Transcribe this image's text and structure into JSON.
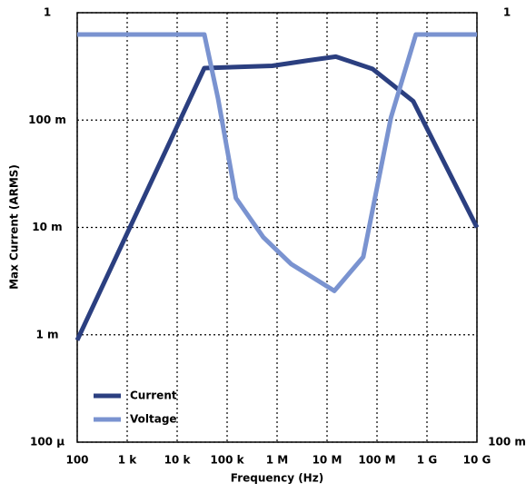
{
  "chart_data": {
    "type": "line",
    "xlabel": "Frequency (Hz)",
    "ylabel": "Max Current (ARMS)",
    "xscale": "log",
    "yscale": "log",
    "y2scale": "log",
    "grid": true,
    "legend": "lower left",
    "xlim": [
      100,
      10000000000
    ],
    "xticks": [
      100,
      {
        "value": 1000,
        "label": "1 k"
      },
      {
        "value": 10000,
        "label": "10 k"
      },
      {
        "value": 100000,
        "label": "100 k"
      },
      {
        "value": 1000000,
        "label": "1 M"
      },
      {
        "value": 10000000,
        "label": "10 M"
      },
      {
        "value": 100000000,
        "label": "100 M"
      },
      {
        "value": 1000000000,
        "label": "1 G"
      },
      {
        "value": 10000000000,
        "label": "10 G"
      }
    ],
    "ylim": [
      0.0001,
      1
    ],
    "yticks": [
      {
        "value": 0.0001,
        "label": "100 µ"
      },
      {
        "value": 0.001,
        "label": "1 m"
      },
      {
        "value": 0.01,
        "label": "10 m"
      },
      {
        "value": 0.1,
        "label": "100 m"
      },
      1
    ],
    "y2lim": [
      0.1,
      1
    ],
    "y2ticks": [
      {
        "value": 0.1,
        "label": "100 m"
      },
      1
    ],
    "series": [
      {
        "name": "Current",
        "color": "#2b3f80",
        "x": [
          100,
          35000,
          800000,
          4300000,
          15000000,
          81000000,
          530000000,
          10000000000
        ],
        "values": [
          0.00089,
          0.305,
          0.32,
          0.36,
          0.39,
          0.3,
          0.15,
          0.01
        ]
      },
      {
        "name": "Voltage",
        "color": "#7a93d0",
        "axis": "y2",
        "x": [
          100,
          35000,
          66000,
          150000,
          530000,
          1900000,
          14000000,
          53000000,
          190000000,
          600000000,
          10000000000
        ],
        "values": [
          0.89,
          0.89,
          0.63,
          0.37,
          0.3,
          0.26,
          0.225,
          0.27,
          0.57,
          0.89,
          0.89
        ]
      }
    ]
  }
}
